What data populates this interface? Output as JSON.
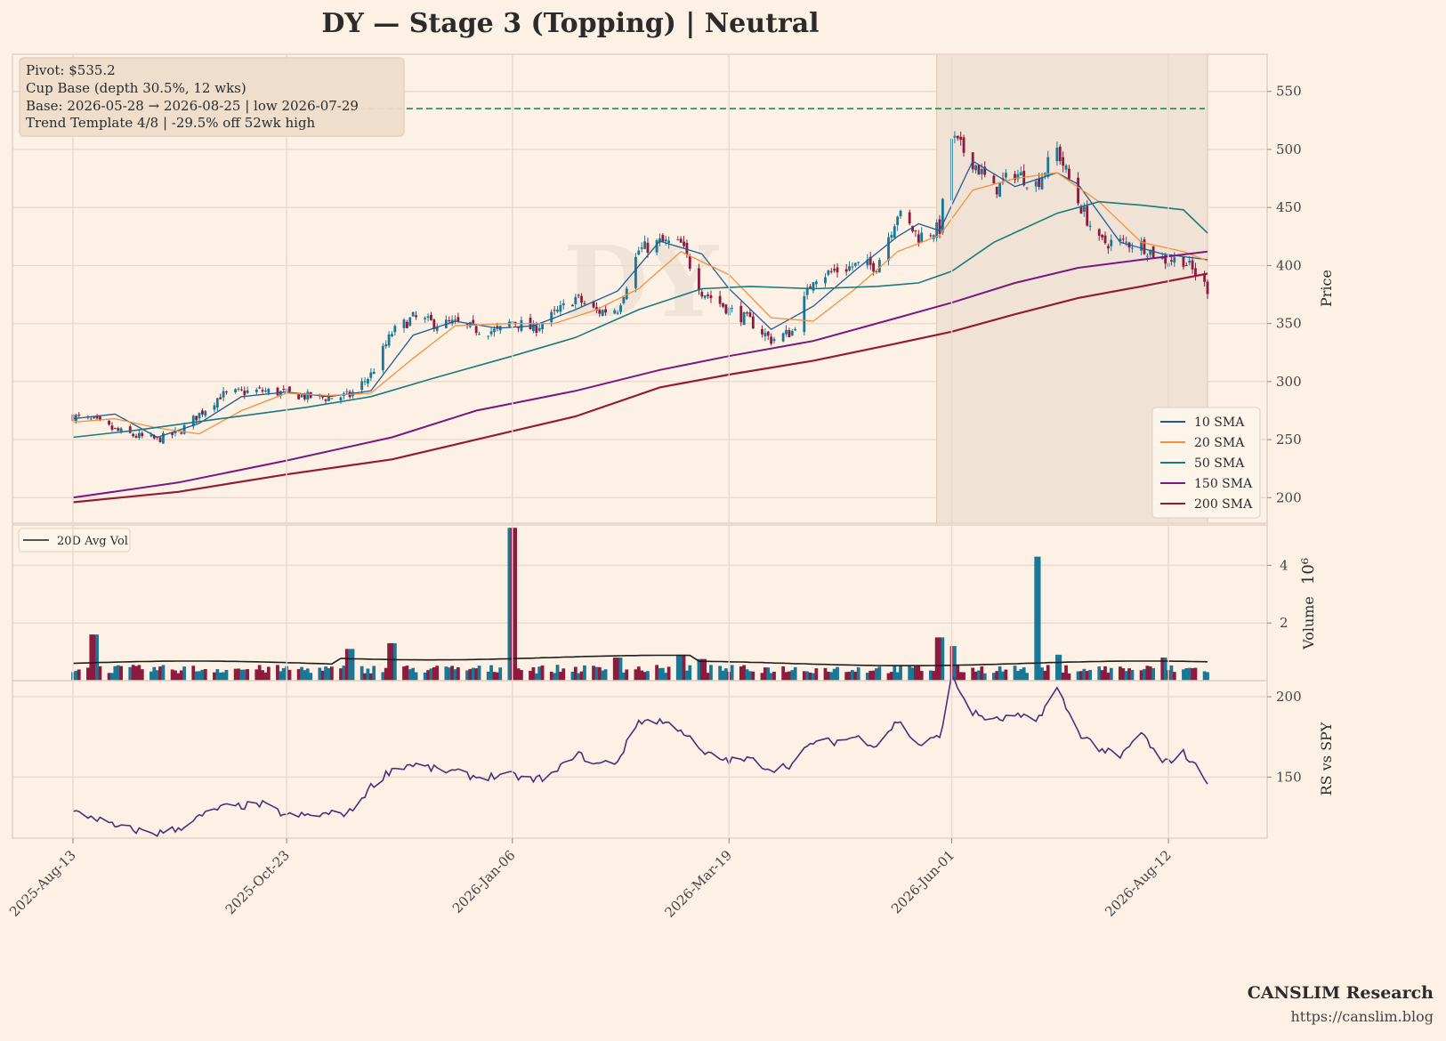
{
  "title": "DY  —  Stage 3 (Topping)  |  Neutral",
  "watermark": "DY",
  "info_box": [
    "Pivot: $535.2",
    "Cup Base  (depth 30.5%, 12 wks)",
    "Base: 2026-05-28 → 2026-08-25  |  low 2026-07-29",
    "Trend Template 4/8  |  -29.5% off 52wk high"
  ],
  "branding": {
    "name": "CANSLIM Research",
    "url": "https://canslim.blog"
  },
  "colors": {
    "background": "#fdf1e6",
    "up": "#1a7896",
    "down": "#8c1b3e",
    "pivot": "#1e8c4e",
    "base_shade": "#f1e2d6",
    "sma10": "#1f5a96",
    "sma20": "#f4903c",
    "sma50": "#187a7a",
    "sma150": "#7a1780",
    "sma200": "#941b38",
    "avg_vol": "#1e1e1e",
    "rs": "#4a2f7a"
  },
  "chart_data": [
    {
      "panel": "price",
      "type": "candlestick",
      "ylabel": "Price",
      "ylim": [
        178,
        582
      ],
      "yticks": [
        200,
        250,
        300,
        350,
        400,
        450,
        500,
        550
      ],
      "x_range": [
        "2025-08-13",
        "2026-08-25"
      ],
      "x_ticks": [
        "2025-Aug-13",
        "2025-Oct-23",
        "2026-Jan-06",
        "2026-Mar-19",
        "2026-Jun-01",
        "2026-Aug-12"
      ],
      "grid": true,
      "pivot_line": 535.2,
      "base_range": [
        "2026-05-28",
        "2026-08-25"
      ],
      "close_series": [
        [
          "2025-08-13",
          270
        ],
        [
          "2025-08-20",
          266
        ],
        [
          "2025-08-27",
          258
        ],
        [
          "2025-09-03",
          253
        ],
        [
          "2025-09-10",
          250
        ],
        [
          "2025-09-17",
          256
        ],
        [
          "2025-09-24",
          272
        ],
        [
          "2025-10-01",
          288
        ],
        [
          "2025-10-08",
          291
        ],
        [
          "2025-10-15",
          292
        ],
        [
          "2025-10-23",
          290
        ],
        [
          "2025-10-30",
          287
        ],
        [
          "2025-11-06",
          286
        ],
        [
          "2025-11-13",
          288
        ],
        [
          "2025-11-20",
          306
        ],
        [
          "2025-11-27",
          342
        ],
        [
          "2025-12-04",
          355
        ],
        [
          "2025-12-11",
          350
        ],
        [
          "2025-12-18",
          350
        ],
        [
          "2025-12-25",
          345
        ],
        [
          "2026-01-01",
          343
        ],
        [
          "2026-01-06",
          352
        ],
        [
          "2026-01-13",
          345
        ],
        [
          "2026-01-20",
          358
        ],
        [
          "2026-01-27",
          372
        ],
        [
          "2026-02-03",
          360
        ],
        [
          "2026-02-10",
          363
        ],
        [
          "2026-02-17",
          413
        ],
        [
          "2026-02-24",
          420
        ],
        [
          "2026-03-03",
          418
        ],
        [
          "2026-03-10",
          378
        ],
        [
          "2026-03-19",
          362
        ],
        [
          "2026-03-26",
          352
        ],
        [
          "2026-04-02",
          336
        ],
        [
          "2026-04-09",
          343
        ],
        [
          "2026-04-16",
          390
        ],
        [
          "2026-04-23",
          395
        ],
        [
          "2026-04-30",
          400
        ],
        [
          "2026-05-07",
          400
        ],
        [
          "2026-05-14",
          445
        ],
        [
          "2026-05-21",
          425
        ],
        [
          "2026-05-28",
          432
        ],
        [
          "2026-06-01",
          510
        ],
        [
          "2026-06-08",
          490
        ],
        [
          "2026-06-15",
          465
        ],
        [
          "2026-06-22",
          480
        ],
        [
          "2026-06-29",
          470
        ],
        [
          "2026-07-06",
          500
        ],
        [
          "2026-07-13",
          455
        ],
        [
          "2026-07-20",
          420
        ],
        [
          "2026-07-27",
          420
        ],
        [
          "2026-08-03",
          418
        ],
        [
          "2026-08-10",
          405
        ],
        [
          "2026-08-17",
          405
        ],
        [
          "2026-08-25",
          380
        ]
      ],
      "series": [
        {
          "name": "10 SMA",
          "points": [
            [
              "2025-08-13",
              268
            ],
            [
              "2025-08-27",
              272
            ],
            [
              "2025-09-10",
              252
            ],
            [
              "2025-09-24",
              264
            ],
            [
              "2025-10-08",
              287
            ],
            [
              "2025-10-23",
              291
            ],
            [
              "2025-11-06",
              287
            ],
            [
              "2025-11-20",
              292
            ],
            [
              "2025-12-04",
              340
            ],
            [
              "2025-12-18",
              352
            ],
            [
              "2026-01-01",
              346
            ],
            [
              "2026-01-13",
              348
            ],
            [
              "2026-01-27",
              362
            ],
            [
              "2026-02-10",
              378
            ],
            [
              "2026-02-24",
              421
            ],
            [
              "2026-03-10",
              410
            ],
            [
              "2026-03-19",
              380
            ],
            [
              "2026-04-02",
              345
            ],
            [
              "2026-04-16",
              365
            ],
            [
              "2026-04-30",
              396
            ],
            [
              "2026-05-14",
              425
            ],
            [
              "2026-05-21",
              436
            ],
            [
              "2026-05-28",
              430
            ],
            [
              "2026-06-08",
              490
            ],
            [
              "2026-06-22",
              468
            ],
            [
              "2026-07-06",
              480
            ],
            [
              "2026-07-13",
              470
            ],
            [
              "2026-07-27",
              420
            ],
            [
              "2026-08-10",
              410
            ],
            [
              "2026-08-25",
              405
            ]
          ]
        },
        {
          "name": "20 SMA",
          "points": [
            [
              "2025-08-13",
              265
            ],
            [
              "2025-08-27",
              268
            ],
            [
              "2025-09-10",
              260
            ],
            [
              "2025-09-24",
              255
            ],
            [
              "2025-10-08",
              275
            ],
            [
              "2025-10-23",
              290
            ],
            [
              "2025-11-06",
              288
            ],
            [
              "2025-11-20",
              290
            ],
            [
              "2025-12-04",
              320
            ],
            [
              "2025-12-18",
              348
            ],
            [
              "2026-01-06",
              350
            ],
            [
              "2026-01-20",
              350
            ],
            [
              "2026-02-03",
              362
            ],
            [
              "2026-02-17",
              380
            ],
            [
              "2026-03-03",
              412
            ],
            [
              "2026-03-19",
              392
            ],
            [
              "2026-04-02",
              355
            ],
            [
              "2026-04-16",
              352
            ],
            [
              "2026-04-30",
              380
            ],
            [
              "2026-05-14",
              412
            ],
            [
              "2026-05-28",
              426
            ],
            [
              "2026-06-08",
              465
            ],
            [
              "2026-06-22",
              475
            ],
            [
              "2026-07-06",
              480
            ],
            [
              "2026-07-20",
              455
            ],
            [
              "2026-08-03",
              420
            ],
            [
              "2026-08-17",
              412
            ],
            [
              "2026-08-25",
              404
            ]
          ]
        },
        {
          "name": "50 SMA",
          "points": [
            [
              "2025-08-13",
              252
            ],
            [
              "2025-09-03",
              258
            ],
            [
              "2025-10-01",
              268
            ],
            [
              "2025-10-30",
              278
            ],
            [
              "2025-11-20",
              287
            ],
            [
              "2025-12-11",
              303
            ],
            [
              "2026-01-06",
              322
            ],
            [
              "2026-01-27",
              338
            ],
            [
              "2026-02-17",
              362
            ],
            [
              "2026-03-10",
              380
            ],
            [
              "2026-03-26",
              382
            ],
            [
              "2026-04-16",
              380
            ],
            [
              "2026-05-07",
              382
            ],
            [
              "2026-05-21",
              385
            ],
            [
              "2026-06-01",
              395
            ],
            [
              "2026-06-15",
              420
            ],
            [
              "2026-07-06",
              445
            ],
            [
              "2026-07-20",
              455
            ],
            [
              "2026-08-03",
              452
            ],
            [
              "2026-08-17",
              448
            ],
            [
              "2026-08-25",
              428
            ]
          ]
        },
        {
          "name": "150 SMA",
          "points": [
            [
              "2025-08-13",
              200
            ],
            [
              "2025-09-17",
              213
            ],
            [
              "2025-10-23",
              232
            ],
            [
              "2025-11-27",
              252
            ],
            [
              "2025-12-25",
              275
            ],
            [
              "2026-01-27",
              292
            ],
            [
              "2026-02-24",
              310
            ],
            [
              "2026-03-19",
              322
            ],
            [
              "2026-04-16",
              335
            ],
            [
              "2026-05-14",
              355
            ],
            [
              "2026-06-01",
              368
            ],
            [
              "2026-06-22",
              385
            ],
            [
              "2026-07-13",
              398
            ],
            [
              "2026-08-03",
              405
            ],
            [
              "2026-08-25",
              412
            ]
          ]
        },
        {
          "name": "200 SMA",
          "points": [
            [
              "2025-08-13",
              196
            ],
            [
              "2025-09-17",
              205
            ],
            [
              "2025-10-23",
              220
            ],
            [
              "2025-11-27",
              233
            ],
            [
              "2025-12-25",
              250
            ],
            [
              "2026-01-27",
              270
            ],
            [
              "2026-02-24",
              295
            ],
            [
              "2026-03-19",
              306
            ],
            [
              "2026-04-16",
              318
            ],
            [
              "2026-05-14",
              333
            ],
            [
              "2026-06-01",
              343
            ],
            [
              "2026-06-22",
              358
            ],
            [
              "2026-07-13",
              372
            ],
            [
              "2026-08-03",
              382
            ],
            [
              "2026-08-25",
              393
            ]
          ]
        }
      ],
      "legend_location": "lower-right"
    },
    {
      "panel": "volume",
      "type": "bar",
      "ylabel": "Volume",
      "scale_label": "10⁶",
      "unit": 1000000,
      "ylim": [
        0,
        5.4
      ],
      "yticks": [
        2,
        4
      ],
      "yticks_labels": [
        "2",
        "4"
      ],
      "avg_line_name": "20D Avg Vol",
      "avg_level": 0.6,
      "legend_location": "upper-left",
      "volume_points": [
        [
          "2025-08-20",
          1.6
        ],
        [
          "2025-11-13",
          1.1
        ],
        [
          "2025-11-27",
          1.3
        ],
        [
          "2026-01-06",
          5.3
        ],
        [
          "2026-02-10",
          0.8
        ],
        [
          "2026-03-03",
          0.9
        ],
        [
          "2026-03-10",
          0.75
        ],
        [
          "2026-05-28",
          1.5
        ],
        [
          "2026-06-01",
          1.2
        ],
        [
          "2026-06-29",
          4.3
        ],
        [
          "2026-07-06",
          0.9
        ],
        [
          "2026-08-10",
          0.8
        ]
      ]
    },
    {
      "panel": "rs",
      "type": "line",
      "ylabel": "RS vs SPY",
      "ylim": [
        112,
        210
      ],
      "yticks": [
        150,
        200
      ],
      "points": [
        [
          "2025-08-13",
          128
        ],
        [
          "2025-08-20",
          125
        ],
        [
          "2025-08-27",
          119
        ],
        [
          "2025-09-03",
          117
        ],
        [
          "2025-09-10",
          115
        ],
        [
          "2025-09-17",
          118
        ],
        [
          "2025-09-24",
          125
        ],
        [
          "2025-10-01",
          131
        ],
        [
          "2025-10-08",
          132
        ],
        [
          "2025-10-15",
          133
        ],
        [
          "2025-10-23",
          126
        ],
        [
          "2025-10-30",
          126
        ],
        [
          "2025-11-06",
          127
        ],
        [
          "2025-11-13",
          128
        ],
        [
          "2025-11-20",
          144
        ],
        [
          "2025-11-27",
          155
        ],
        [
          "2025-12-04",
          158
        ],
        [
          "2025-12-11",
          155
        ],
        [
          "2025-12-18",
          153
        ],
        [
          "2025-12-25",
          150
        ],
        [
          "2026-01-06",
          151
        ],
        [
          "2026-01-13",
          148
        ],
        [
          "2026-01-20",
          152
        ],
        [
          "2026-01-27",
          165
        ],
        [
          "2026-02-03",
          158
        ],
        [
          "2026-02-10",
          160
        ],
        [
          "2026-02-17",
          185
        ],
        [
          "2026-02-24",
          185
        ],
        [
          "2026-03-03",
          180
        ],
        [
          "2026-03-10",
          165
        ],
        [
          "2026-03-19",
          160
        ],
        [
          "2026-03-26",
          161
        ],
        [
          "2026-04-02",
          155
        ],
        [
          "2026-04-09",
          158
        ],
        [
          "2026-04-16",
          172
        ],
        [
          "2026-04-23",
          172
        ],
        [
          "2026-04-30",
          175
        ],
        [
          "2026-05-07",
          170
        ],
        [
          "2026-05-14",
          185
        ],
        [
          "2026-05-21",
          170
        ],
        [
          "2026-05-28",
          175
        ],
        [
          "2026-06-01",
          212
        ],
        [
          "2026-06-08",
          190
        ],
        [
          "2026-06-15",
          185
        ],
        [
          "2026-06-22",
          188
        ],
        [
          "2026-06-29",
          185
        ],
        [
          "2026-07-06",
          205
        ],
        [
          "2026-07-13",
          178
        ],
        [
          "2026-07-20",
          168
        ],
        [
          "2026-07-27",
          162
        ],
        [
          "2026-08-03",
          178
        ],
        [
          "2026-08-10",
          158
        ],
        [
          "2026-08-17",
          165
        ],
        [
          "2026-08-25",
          148
        ]
      ]
    }
  ]
}
